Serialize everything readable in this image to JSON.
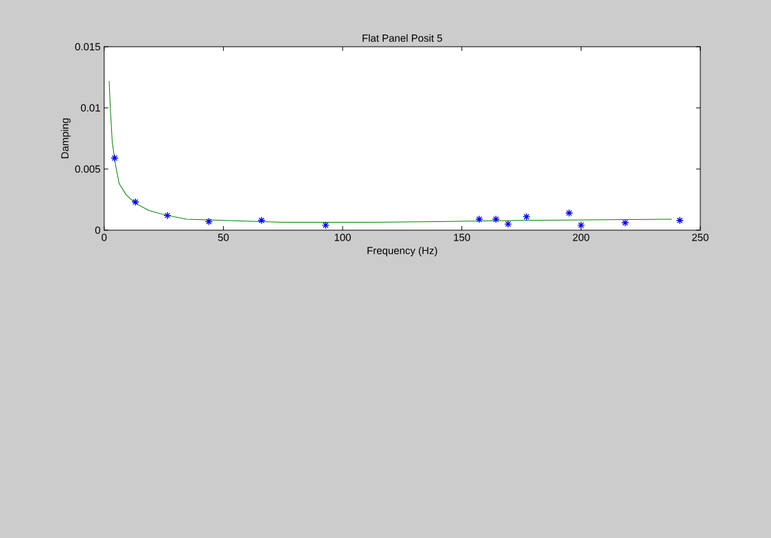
{
  "chart_data": {
    "type": "scatter",
    "title": "Flat Panel Posit 5",
    "xlabel": "Frequency (Hz)",
    "ylabel": "Damping",
    "xlim": [
      0,
      250
    ],
    "ylim": [
      0,
      0.015
    ],
    "xticks": [
      0,
      50,
      100,
      150,
      200,
      250
    ],
    "yticks": [
      0,
      0.005,
      0.01,
      0.015
    ],
    "grid": false,
    "series": [
      {
        "type": "line",
        "marker": "none",
        "color": "#008000",
        "x": [
          2.1,
          2.6,
          3.4,
          4.8,
          6.3,
          9.2,
          13.1,
          18.9,
          26.5,
          34.5,
          50,
          75,
          113,
          140,
          175,
          238
        ],
        "values": [
          0.0122,
          0.0099,
          0.0072,
          0.0053,
          0.0038,
          0.0029,
          0.0022,
          0.0016,
          0.0012,
          0.0009,
          0.0008,
          0.00065,
          0.00065,
          0.0007,
          0.0008,
          0.0009
        ]
      },
      {
        "marker": "cross",
        "color": "#0000ff",
        "x": [
          4.4,
          13.1,
          26.5,
          43.9,
          66,
          92.9,
          157.3,
          164.3,
          169.4,
          177.1,
          195,
          200,
          218.5,
          241.4
        ],
        "values": [
          0.0059,
          0.0023,
          0.0012,
          0.0007,
          0.0008,
          0.0004,
          0.0009,
          0.0009,
          0.0005,
          0.0011,
          0.0014,
          0.0004,
          0.0006,
          0.0008
        ]
      }
    ]
  }
}
